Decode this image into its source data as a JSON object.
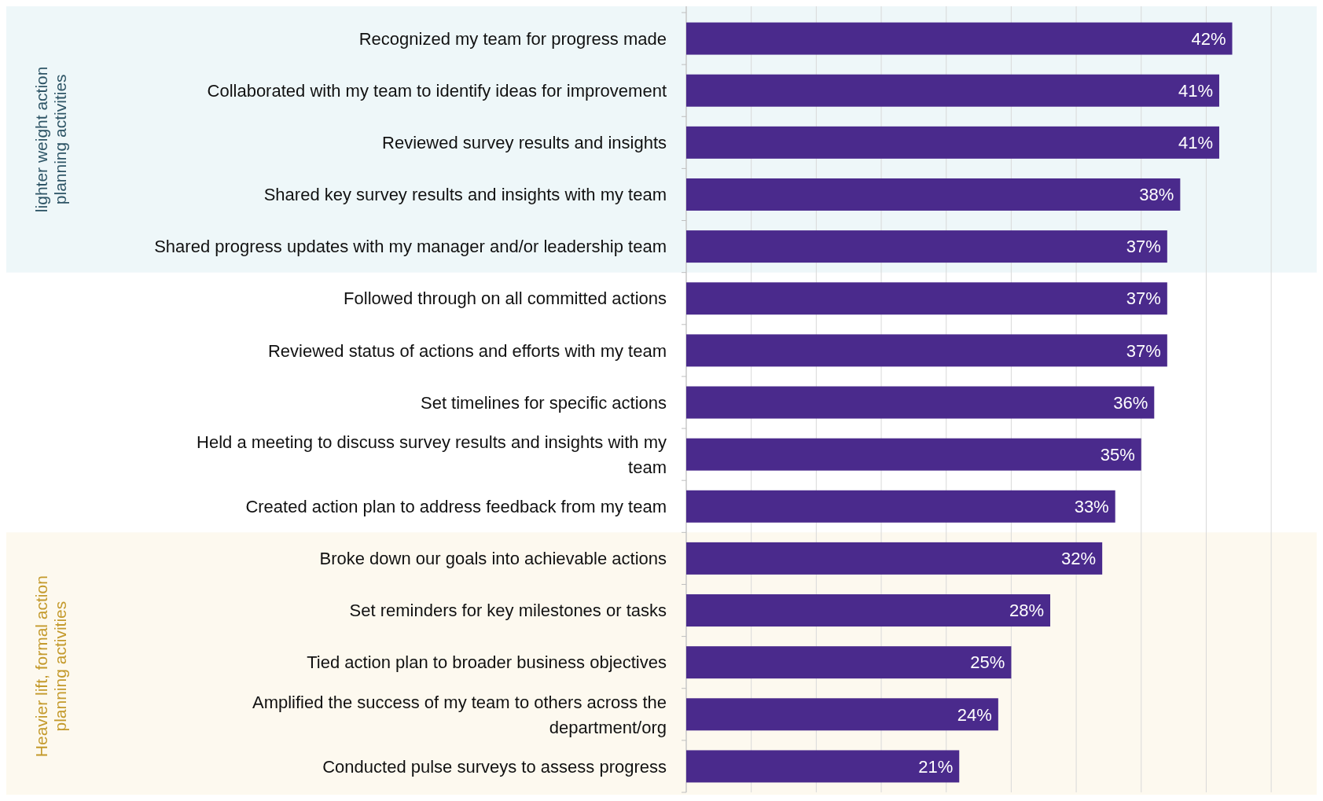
{
  "chart_data": {
    "type": "bar",
    "orientation": "horizontal",
    "categories": [
      "Recognized my team for progress made",
      "Collaborated with my team to identify ideas for improvement",
      "Reviewed survey results and insights",
      "Shared key survey results and insights with my team",
      "Shared progress updates with my manager and/or leadership team",
      "Followed through on all committed actions",
      "Reviewed status of actions and efforts with my team",
      "Set timelines for specific actions",
      "Held a meeting to discuss survey results and insights with my team",
      "Created action plan to address feedback from my team",
      "Broke down our goals into achievable actions",
      "Set reminders for key milestones or tasks",
      "Tied action plan to broader business objectives",
      "Amplified the success of my team to others across the department/org",
      "Conducted pulse surveys to assess progress"
    ],
    "values": [
      42,
      41,
      41,
      38,
      37,
      37,
      37,
      36,
      35,
      33,
      32,
      28,
      25,
      24,
      21
    ],
    "color": "#4a2a8c",
    "value_labels": [
      "42%",
      "41%",
      "41%",
      "38%",
      "37%",
      "37%",
      "37%",
      "36%",
      "35%",
      "33%",
      "32%",
      "28%",
      "25%",
      "24%",
      "21%"
    ],
    "xlim": [
      0,
      48.5
    ],
    "xticks": [
      {
        "value": 0,
        "label": null
      },
      {
        "value": 5,
        "label": null
      },
      {
        "value": 10,
        "label": null
      },
      {
        "value": 15,
        "label": null
      },
      {
        "value": 20,
        "label": null
      },
      {
        "value": 25,
        "label": null
      },
      {
        "value": 30,
        "label": null
      },
      {
        "value": 35,
        "label": null
      },
      {
        "value": 40,
        "label": null
      },
      {
        "value": 45,
        "label": null
      }
    ],
    "tick_labels": "y",
    "grid": "x",
    "bands": [
      {
        "axis": "y",
        "from": "Recognized my team for progress made",
        "to": "Shared progress updates with my manager and/or leadership team",
        "label": "lighter weight action planning activities",
        "color": "#eef7f9"
      },
      {
        "axis": "y",
        "from": "Broke down our goals into achievable actions",
        "to": "Conducted pulse surveys to assess progress",
        "label": "Heavier lift, formal action planning activities",
        "color": "#fdf9ef"
      }
    ]
  }
}
